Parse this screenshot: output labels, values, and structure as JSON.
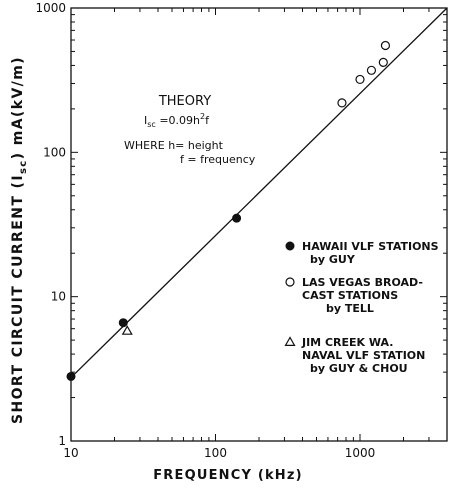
{
  "chart_data": {
    "type": "scatter",
    "title": "",
    "xlabel": "FREQUENCY (kHz)",
    "ylabel": "SHORT CIRCUIT CURRENT (I",
    "ylabel_sub": "sc",
    "ylabel_tail": ") mA(kV/m)",
    "x_scale": "log",
    "y_scale": "log",
    "xlim": [
      10,
      4000
    ],
    "ylim": [
      1,
      1000
    ],
    "grid": false,
    "x_ticks": [
      {
        "value": 10,
        "label": "10"
      },
      {
        "value": 100,
        "label": "100"
      },
      {
        "value": 1000,
        "label": "1000"
      }
    ],
    "y_ticks": [
      {
        "value": 1,
        "label": "1"
      },
      {
        "value": 10,
        "label": "10"
      },
      {
        "value": 100,
        "label": "100"
      },
      {
        "value": 1000,
        "label": "1000"
      }
    ],
    "theory_line": {
      "label": "THEORY",
      "points": [
        [
          10,
          2.75
        ],
        [
          4000,
          1000
        ]
      ]
    },
    "annotation": {
      "title": "THEORY",
      "formula_main": "I",
      "formula_sub": "sc",
      "formula_eq": " =0.09h",
      "formula_sup": "2",
      "formula_tail": "f",
      "where_line": "WHERE h= height",
      "freq_line": "f = frequency"
    },
    "series": [
      {
        "name": "HAWAII VLF STATIONS by GUY",
        "marker": "filled-circle",
        "points": [
          [
            10,
            2.8
          ],
          [
            23,
            6.6
          ],
          [
            140,
            35
          ]
        ]
      },
      {
        "name": "LAS VEGAS BROADCAST STATIONS by TELL",
        "marker": "open-circle",
        "points": [
          [
            750,
            220
          ],
          [
            1000,
            320
          ],
          [
            1200,
            370
          ],
          [
            1450,
            420
          ],
          [
            1500,
            550
          ]
        ]
      },
      {
        "name": "JIM CREEK WA. NAVAL VLF STATION by GUY & CHOU",
        "marker": "open-triangle",
        "points": [
          [
            24.5,
            5.8
          ]
        ]
      }
    ],
    "legend": {
      "position": "right",
      "entries": [
        {
          "marker": "filled-circle",
          "lines": [
            "HAWAII VLF STATIONS",
            "by GUY"
          ]
        },
        {
          "marker": "open-circle",
          "lines": [
            "LAS VEGAS BROAD-",
            "CAST STATIONS",
            "by TELL"
          ]
        },
        {
          "marker": "open-triangle",
          "lines": [
            "JIM CREEK WA.",
            "NAVAL VLF STATION",
            "by GUY & CHOU"
          ]
        }
      ]
    }
  }
}
